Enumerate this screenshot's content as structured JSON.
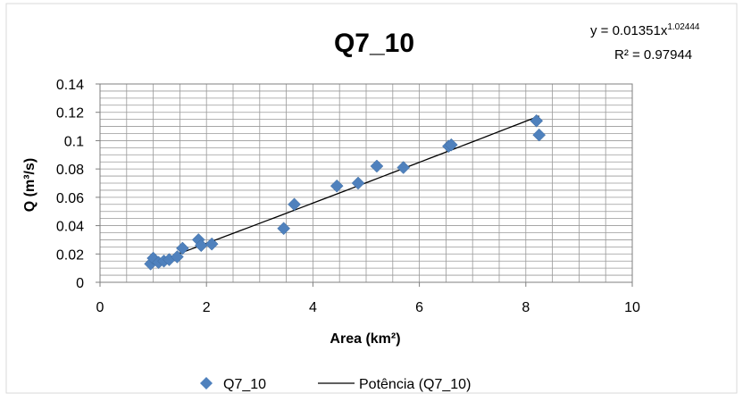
{
  "chart_data": {
    "type": "scatter",
    "title": "Q7_10",
    "xlabel": "Area (km²)",
    "ylabel": "Q  (m³/s)",
    "xlim": [
      0,
      10
    ],
    "ylim": [
      0,
      0.14
    ],
    "x_ticks": [
      "0",
      "2",
      "4",
      "6",
      "8",
      "10"
    ],
    "y_ticks": [
      "0",
      "0.02",
      "0.04",
      "0.06",
      "0.08",
      "0.1",
      "0.12",
      "0.14"
    ],
    "grid": true,
    "marker_color": "#4f81bd",
    "series": [
      {
        "name": "Q7_10",
        "x": [
          0.95,
          1.0,
          1.1,
          1.2,
          1.3,
          1.45,
          1.55,
          1.85,
          1.9,
          2.1,
          3.45,
          3.65,
          4.45,
          4.85,
          5.2,
          5.7,
          6.55,
          6.6,
          8.2,
          8.25
        ],
        "y": [
          0.013,
          0.017,
          0.014,
          0.015,
          0.016,
          0.018,
          0.024,
          0.03,
          0.026,
          0.027,
          0.038,
          0.055,
          0.068,
          0.07,
          0.082,
          0.081,
          0.096,
          0.097,
          0.114,
          0.104
        ]
      }
    ],
    "trendline": {
      "name": "Potência (Q7_10)",
      "type": "power",
      "coefficient": 0.01351,
      "exponent": 1.02444,
      "equation_base": "y = 0.01351x",
      "equation_exp": "1.02444",
      "r2_label": "R² = 0.97944"
    },
    "legend": {
      "placement": "bottom",
      "marker_label": "Q7_10",
      "line_label": "Potência (Q7_10)"
    }
  }
}
